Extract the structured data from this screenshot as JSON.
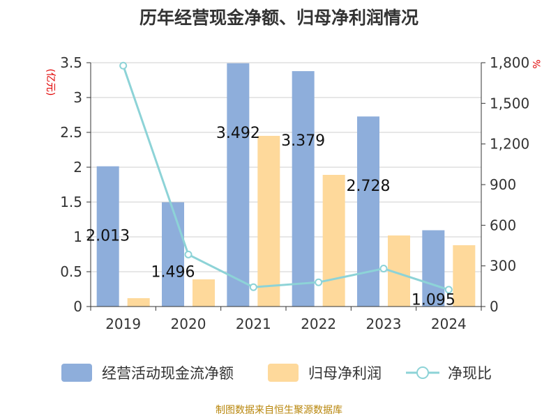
{
  "chart_data": {
    "type": "bar",
    "title": "历年经营现金净额、归母净利润情况",
    "categories": [
      "2019",
      "2020",
      "2021",
      "2022",
      "2023",
      "2024"
    ],
    "left_axis": {
      "unit_label": "(亿元)",
      "ylim": [
        0,
        3.5
      ],
      "ticks": [
        0,
        0.5,
        1,
        1.5,
        2,
        2.5,
        3,
        3.5
      ],
      "tick_labels": [
        "0",
        "0.5",
        "1",
        "1.5",
        "2",
        "2.5",
        "3",
        "3.5"
      ]
    },
    "right_axis": {
      "unit_label": "%",
      "ylim": [
        0,
        1800
      ],
      "ticks": [
        0,
        300,
        600,
        900,
        1200,
        1500,
        1800
      ],
      "tick_labels": [
        "0",
        "300",
        "600",
        "900",
        "1,200",
        "1,500",
        "1,800"
      ]
    },
    "series": [
      {
        "name": "经营活动现金流净额",
        "type": "bar",
        "axis": "left",
        "color": "#8eaedb",
        "values": [
          2.013,
          1.496,
          3.492,
          3.379,
          2.728,
          1.095
        ],
        "data_labels": [
          "2.013",
          "1.496",
          "3.492",
          "3.379",
          "2.728",
          "1.095"
        ]
      },
      {
        "name": "归母净利润",
        "type": "bar",
        "axis": "left",
        "color": "#fed99b",
        "values": [
          0.12,
          0.39,
          2.45,
          1.89,
          1.02,
          0.88
        ]
      },
      {
        "name": "净现比",
        "type": "line",
        "axis": "right",
        "color": "#8dd3d7",
        "values": [
          1778,
          384,
          143,
          179,
          280,
          124
        ]
      }
    ],
    "grid": true,
    "legend_position": "bottom"
  },
  "footer": {
    "source": "制图数据来自恒生聚源数据库"
  }
}
